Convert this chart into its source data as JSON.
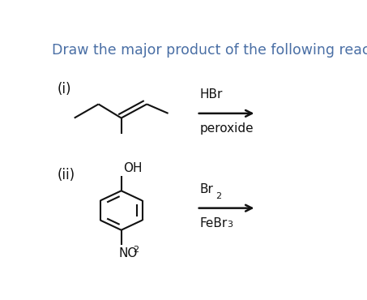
{
  "title": "Draw the major product of the following reactions.",
  "title_fontsize": 12.5,
  "title_color": "#4a6fa5",
  "background_color": "#ffffff",
  "label_i": "(i)",
  "label_ii": "(ii)",
  "label_fontsize": 12,
  "arrow_color": "#111111",
  "line_color": "#111111",
  "line_width": 1.5,
  "reagent_fontsize": 11,
  "sub_fontsize": 8
}
